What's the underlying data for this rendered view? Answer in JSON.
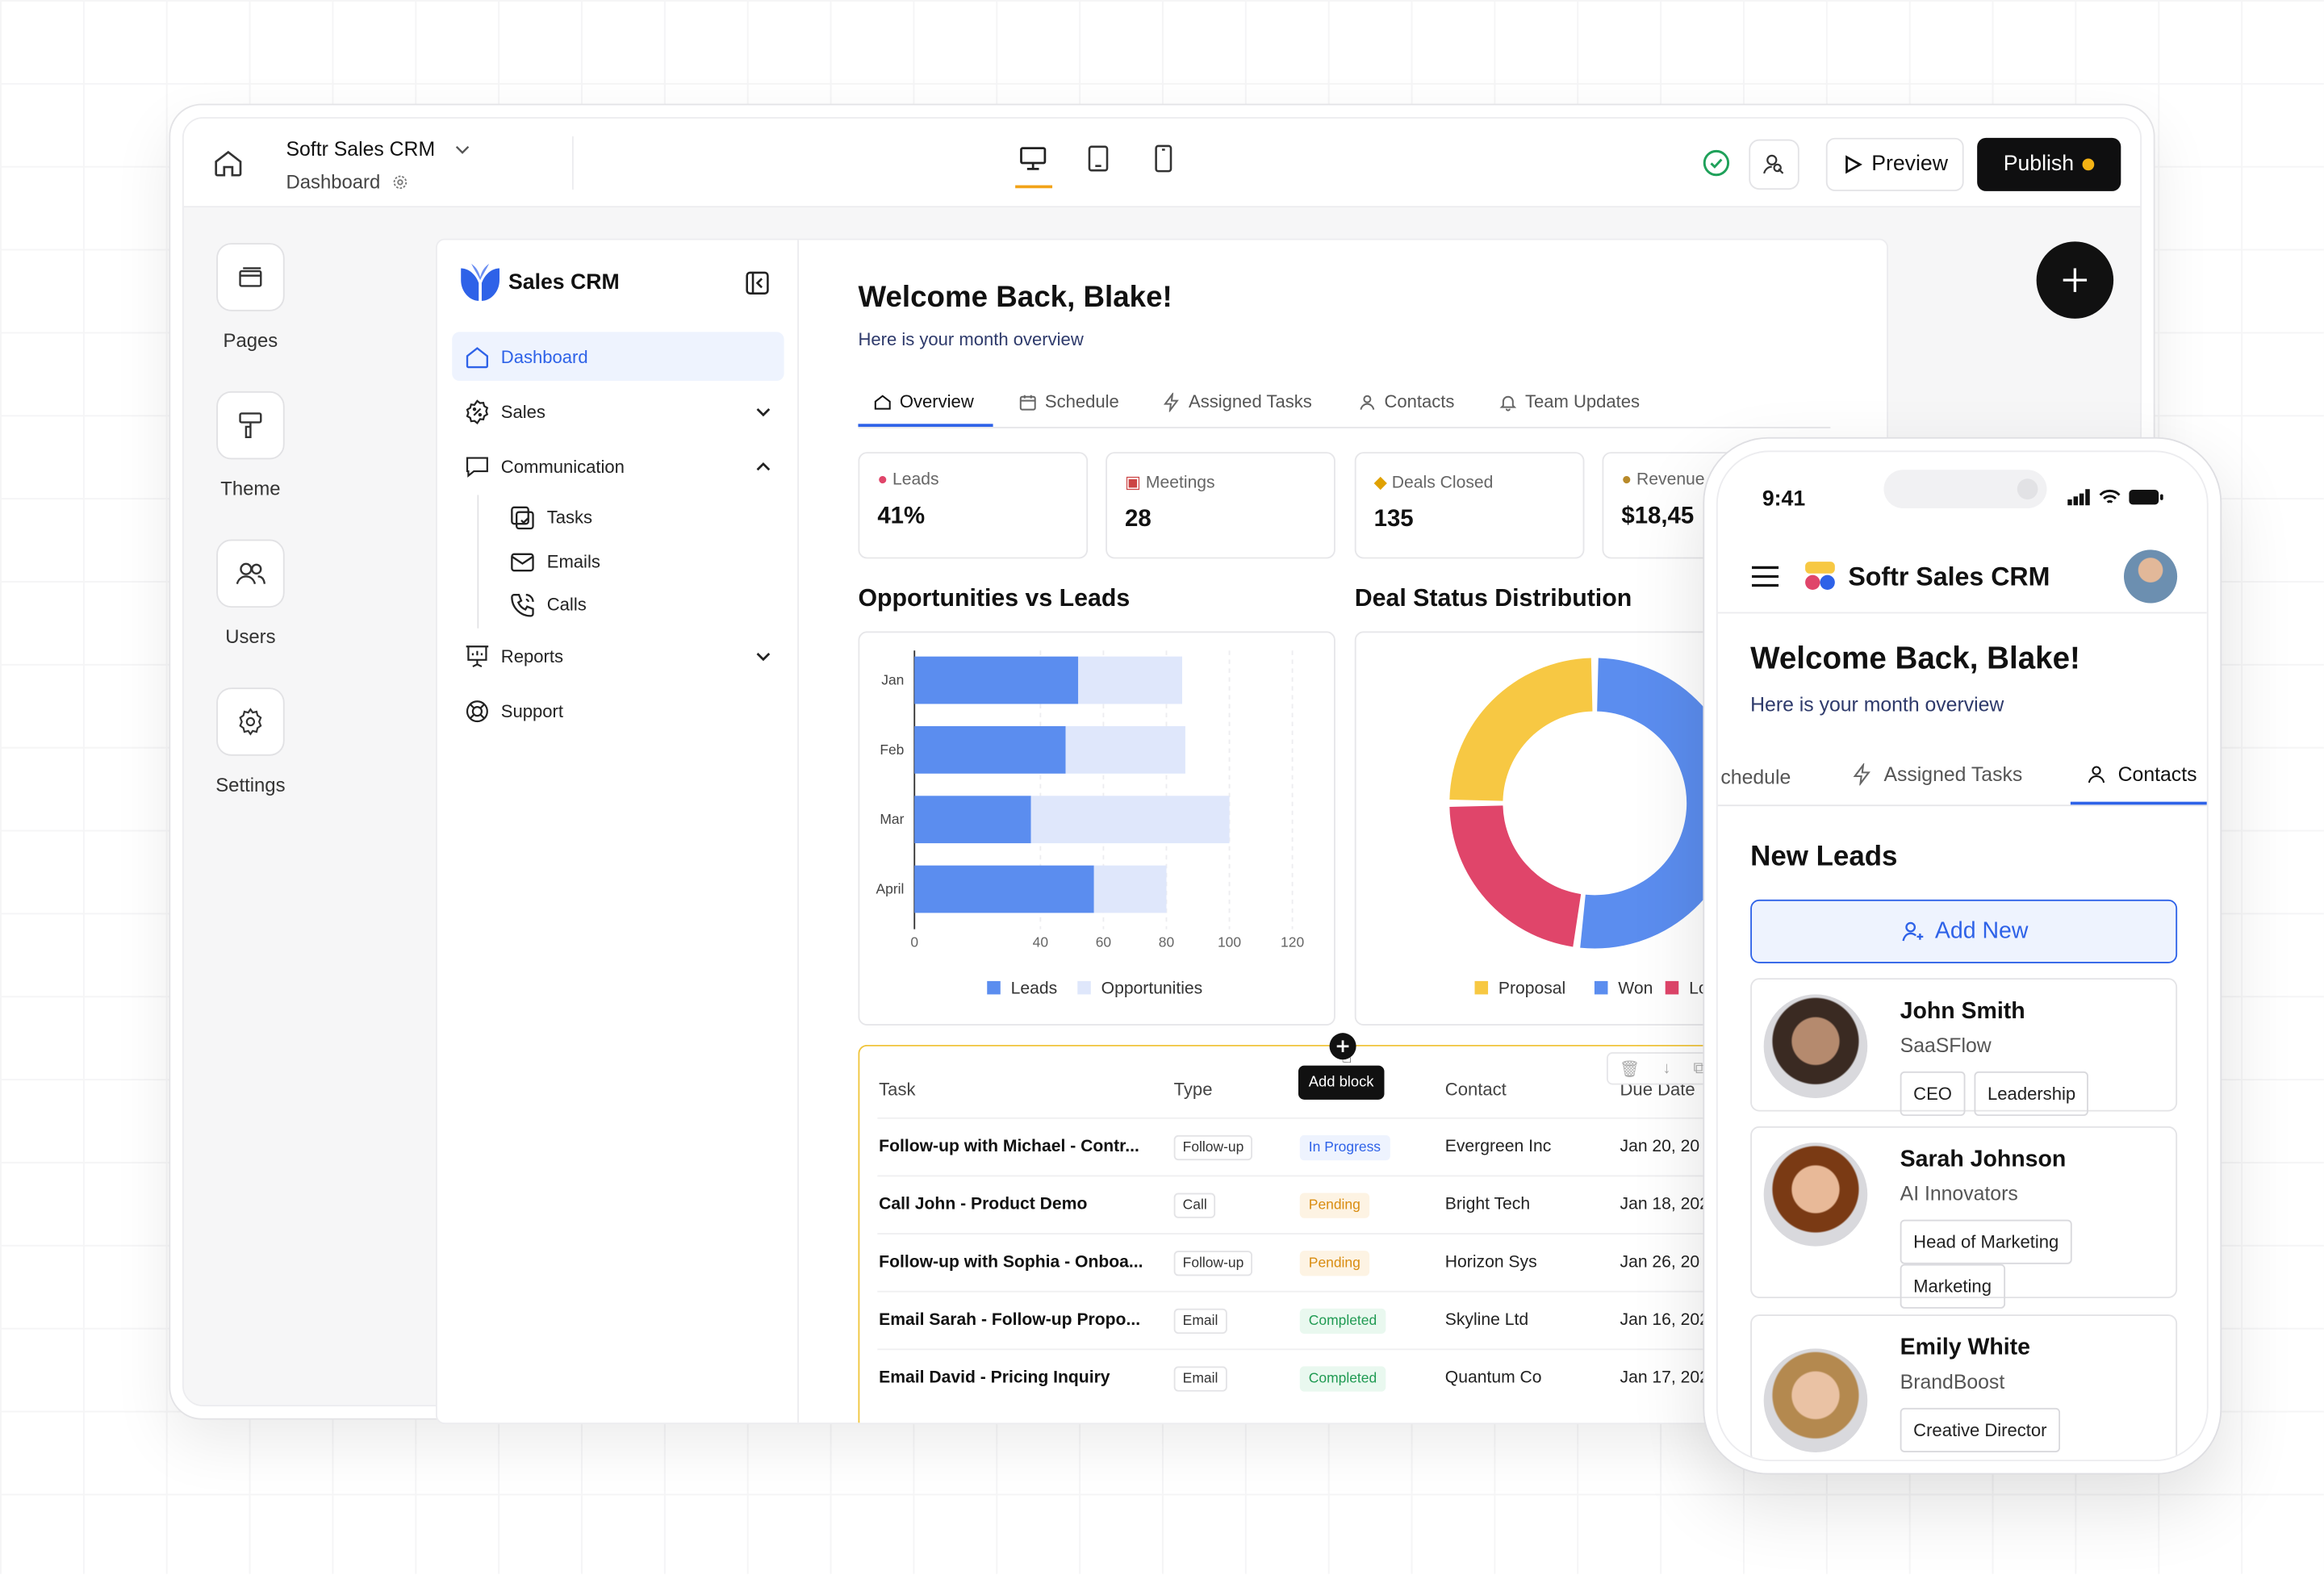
{
  "builder": {
    "app_name": "Softr Sales CRM",
    "page_name": "Dashboard",
    "preview_label": "Preview",
    "publish_label": "Publish",
    "rail": [
      {
        "label": "Pages"
      },
      {
        "label": "Theme"
      },
      {
        "label": "Users"
      },
      {
        "label": "Settings"
      }
    ],
    "add_block_label": "Add block"
  },
  "app": {
    "brand": "Sales CRM",
    "nav": {
      "dashboard": "Dashboard",
      "sales": "Sales",
      "communication": "Communication",
      "tasks": "Tasks",
      "emails": "Emails",
      "calls": "Calls",
      "reports": "Reports",
      "support": "Support"
    },
    "welcome": "Welcome Back, Blake!",
    "subtitle": "Here is your month overview",
    "tabs": [
      "Overview",
      "Schedule",
      "Assigned Tasks",
      "Contacts",
      "Team Updates"
    ],
    "kpis": [
      {
        "label": "Leads",
        "value": "41%",
        "icon": "target-icon"
      },
      {
        "label": "Meetings",
        "value": "28",
        "icon": "calendar-icon"
      },
      {
        "label": "Deals Closed",
        "value": "135",
        "icon": "handshake-icon"
      },
      {
        "label": "Revenue",
        "value": "$18,45",
        "icon": "money-bag-icon"
      }
    ],
    "charts_titles": {
      "bar": "Opportunities vs Leads",
      "donut": "Deal Status Distribution"
    },
    "table": {
      "headers": [
        "Task",
        "Type",
        "",
        "Contact",
        "Due Date"
      ],
      "rows": [
        {
          "task": "Follow-up with Michael - Contr...",
          "type": "Follow-up",
          "status": "In Progress",
          "contact": "Evergreen Inc",
          "due": "Jan 20, 20"
        },
        {
          "task": "Call John - Product Demo",
          "type": "Call",
          "status": "Pending",
          "contact": "Bright Tech",
          "due": "Jan 18, 202"
        },
        {
          "task": "Follow-up with Sophia - Onboa...",
          "type": "Follow-up",
          "status": "Pending",
          "contact": "Horizon Sys",
          "due": "Jan 26, 20"
        },
        {
          "task": "Email Sarah - Follow-up Propo...",
          "type": "Email",
          "status": "Completed",
          "contact": "Skyline Ltd",
          "due": "Jan 16, 202"
        },
        {
          "task": "Email David - Pricing Inquiry",
          "type": "Email",
          "status": "Completed",
          "contact": "Quantum Co",
          "due": "Jan 17, 202"
        }
      ]
    }
  },
  "chart_data": [
    {
      "type": "bar",
      "orientation": "horizontal",
      "stacked": true,
      "title": "Opportunities vs Leads",
      "categories": [
        "Jan",
        "Feb",
        "Mar",
        "April"
      ],
      "series": [
        {
          "name": "Leads",
          "values": [
            52,
            48,
            37,
            57
          ],
          "color": "#5b8def"
        },
        {
          "name": "Opportunities",
          "values": [
            33,
            38,
            63,
            23
          ],
          "color": "#dfe7fb"
        }
      ],
      "xlim": [
        0,
        120
      ],
      "xticks": [
        0,
        40,
        60,
        80,
        100,
        120
      ],
      "legend": "bottom"
    },
    {
      "type": "pie",
      "donut": true,
      "title": "Deal Status Distribution",
      "labels": [
        "Proposal",
        "Won",
        "Lost"
      ],
      "values": [
        25,
        52,
        23
      ],
      "colors": [
        "#f7c843",
        "#5b8def",
        "#e0456a"
      ],
      "legend": "bottom",
      "legend_visible": [
        "Proposal",
        "Won",
        "Los"
      ]
    }
  ],
  "phone": {
    "time": "9:41",
    "app_name": "Softr Sales CRM",
    "welcome": "Welcome Back, Blake!",
    "subtitle": "Here is your month overview",
    "tabs": [
      "chedule",
      "Assigned Tasks",
      "Contacts"
    ],
    "section": "New Leads",
    "add_new": "Add New",
    "leads": [
      {
        "name": "John Smith",
        "company": "SaaSFlow",
        "tags": [
          "CEO",
          "Leadership"
        ]
      },
      {
        "name": "Sarah Johnson",
        "company": "AI Innovators",
        "tags": [
          "Head of Marketing",
          "Marketing"
        ]
      },
      {
        "name": "Emily White",
        "company": "BrandBoost",
        "tags": [
          "Creative Director"
        ]
      }
    ]
  }
}
